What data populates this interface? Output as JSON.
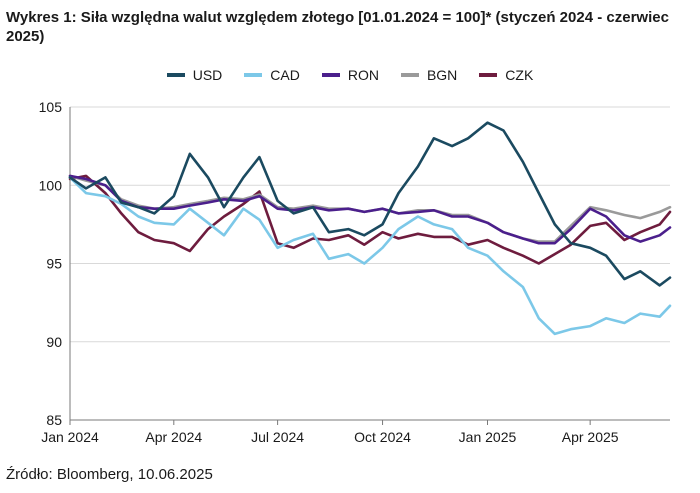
{
  "title": "Wykres 1: Siła względna walut względem złotego [01.01.2024 = 100]* (styczeń 2024 - czerwiec 2025)",
  "source": "Źródło: Bloomberg, 10.06.2025",
  "chart_data": {
    "type": "line",
    "title": "Wykres 1: Siła względna walut względem złotego [01.01.2024 = 100]* (styczeń 2024 - czerwiec 2025)",
    "xlabel": "",
    "ylabel": "",
    "ylim": [
      85,
      105
    ],
    "yticks": [
      "85",
      "90",
      "95",
      "100",
      "105"
    ],
    "xticks": [
      "Jan 2024",
      "Apr 2024",
      "Jul 2024",
      "Oct 2024",
      "Jan 2025",
      "Apr 2025"
    ],
    "grid": "horizontal",
    "legend_position": "top-center",
    "x": [
      "2024-01-01",
      "2024-01-15",
      "2024-02-01",
      "2024-02-15",
      "2024-03-01",
      "2024-03-15",
      "2024-04-01",
      "2024-04-15",
      "2024-05-01",
      "2024-05-15",
      "2024-06-01",
      "2024-06-15",
      "2024-07-01",
      "2024-07-15",
      "2024-08-01",
      "2024-08-15",
      "2024-09-01",
      "2024-09-15",
      "2024-10-01",
      "2024-10-15",
      "2024-11-01",
      "2024-11-15",
      "2024-12-01",
      "2024-12-15",
      "2025-01-01",
      "2025-01-15",
      "2025-02-01",
      "2025-02-15",
      "2025-03-01",
      "2025-03-15",
      "2025-04-01",
      "2025-04-15",
      "2025-05-01",
      "2025-05-15",
      "2025-06-01",
      "2025-06-10"
    ],
    "series": [
      {
        "name": "USD",
        "color": "#1b4a60",
        "values": [
          100.5,
          99.8,
          100.5,
          98.9,
          98.6,
          98.2,
          99.3,
          102.0,
          100.5,
          98.6,
          100.5,
          101.8,
          99.0,
          98.2,
          98.6,
          97.0,
          97.2,
          96.8,
          97.5,
          99.5,
          101.2,
          103.0,
          102.5,
          103.0,
          104.0,
          103.5,
          101.5,
          99.5,
          97.5,
          96.3,
          96.0,
          95.5,
          94.0,
          94.5,
          93.6,
          94.1
        ]
      },
      {
        "name": "CAD",
        "color": "#7cc8e8",
        "values": [
          100.5,
          99.5,
          99.3,
          98.8,
          98.0,
          97.6,
          97.5,
          98.5,
          97.6,
          96.8,
          98.5,
          97.8,
          96.0,
          96.5,
          96.9,
          95.3,
          95.6,
          95.0,
          96.0,
          97.2,
          98.0,
          97.5,
          97.2,
          96.0,
          95.5,
          94.5,
          93.5,
          91.5,
          90.5,
          90.8,
          91.0,
          91.5,
          91.2,
          91.8,
          91.6,
          92.3
        ]
      },
      {
        "name": "RON",
        "color": "#4b1f8c",
        "values": [
          100.6,
          100.4,
          100.0,
          99.0,
          98.6,
          98.5,
          98.5,
          98.7,
          98.9,
          99.1,
          99.0,
          99.3,
          98.5,
          98.4,
          98.6,
          98.4,
          98.5,
          98.3,
          98.5,
          98.2,
          98.3,
          98.4,
          98.0,
          98.0,
          97.6,
          97.0,
          96.6,
          96.3,
          96.3,
          97.2,
          98.5,
          98.0,
          96.8,
          96.4,
          96.8,
          97.3
        ]
      },
      {
        "name": "BGN",
        "color": "#9a9a9a",
        "values": [
          100.6,
          100.3,
          100.0,
          99.1,
          98.7,
          98.5,
          98.6,
          98.8,
          99.0,
          99.2,
          99.1,
          99.4,
          98.6,
          98.5,
          98.7,
          98.5,
          98.5,
          98.3,
          98.5,
          98.2,
          98.4,
          98.4,
          98.1,
          98.1,
          97.6,
          97.0,
          96.6,
          96.4,
          96.4,
          97.4,
          98.6,
          98.4,
          98.1,
          97.9,
          98.3,
          98.6
        ]
      },
      {
        "name": "CZK",
        "color": "#6e1c3e",
        "values": [
          100.4,
          100.6,
          99.5,
          98.2,
          97.0,
          96.5,
          96.3,
          95.8,
          97.2,
          98.0,
          98.8,
          99.6,
          96.3,
          96.0,
          96.6,
          96.5,
          96.8,
          96.2,
          97.0,
          96.6,
          96.9,
          96.7,
          96.7,
          96.2,
          96.5,
          96.0,
          95.5,
          95.0,
          95.6,
          96.2,
          97.4,
          97.6,
          96.5,
          97.0,
          97.5,
          98.3
        ]
      }
    ]
  }
}
